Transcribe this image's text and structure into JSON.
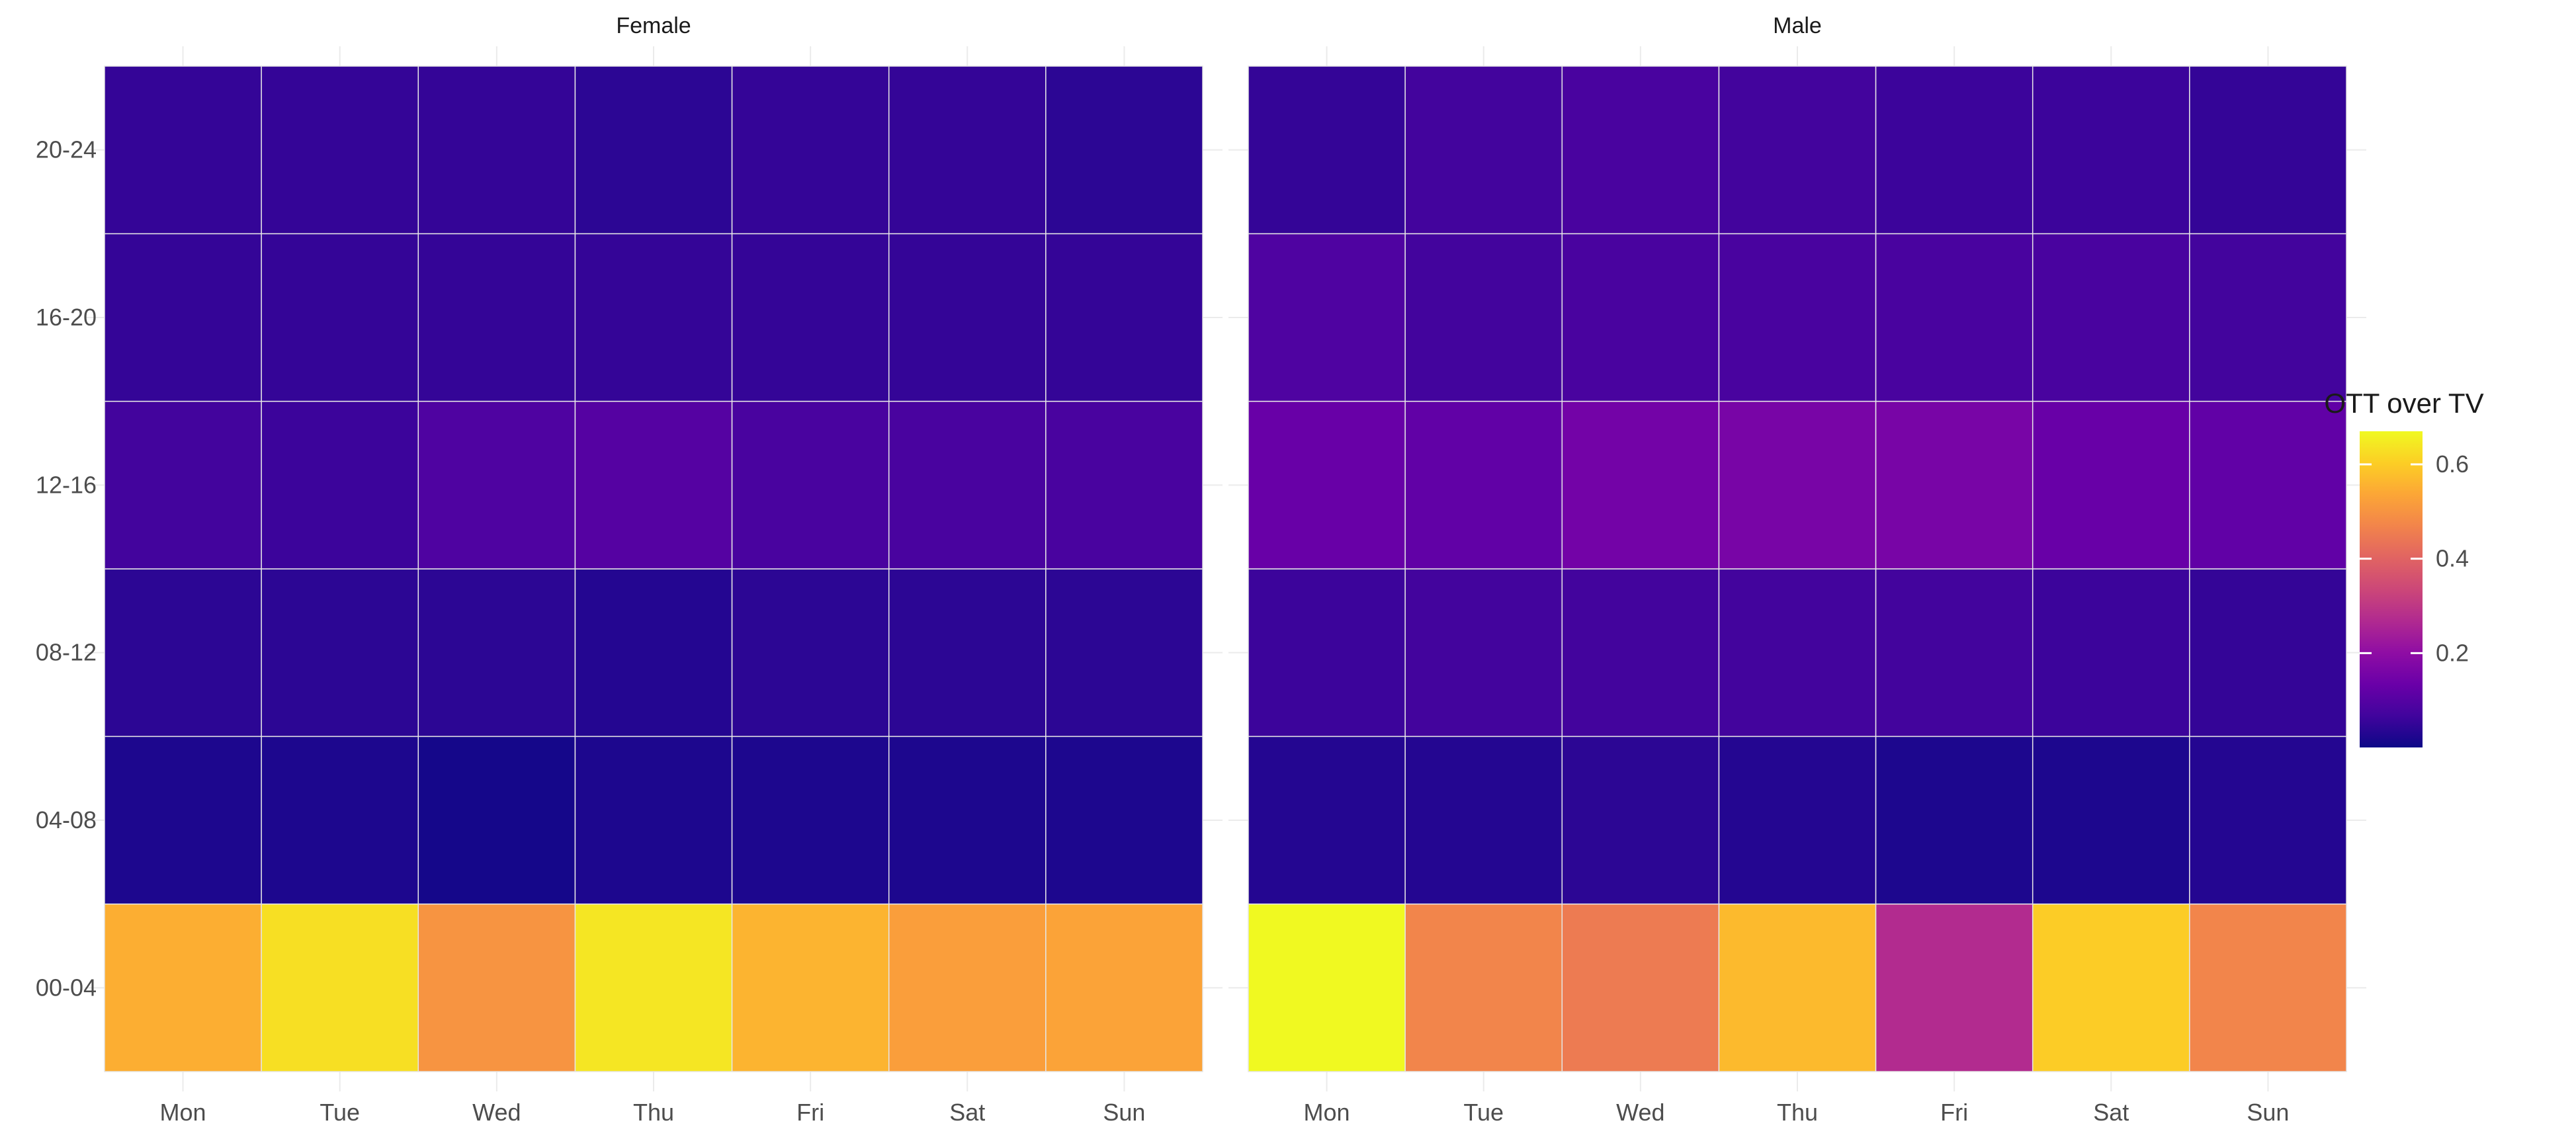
{
  "chart_data": {
    "type": "heatmap",
    "title": "",
    "xlabel": "",
    "ylabel": "",
    "panels": [
      {
        "label": "Female",
        "x": [
          "Mon",
          "Tue",
          "Wed",
          "Thu",
          "Fri",
          "Sat",
          "Sun"
        ],
        "y": [
          "00-04",
          "04-08",
          "08-12",
          "12-16",
          "16-20",
          "20-24"
        ],
        "values": [
          [
            0.55,
            0.63,
            0.5,
            0.64,
            0.56,
            0.52,
            0.53
          ],
          [
            0.02,
            0.02,
            0.01,
            0.02,
            0.02,
            0.02,
            0.02
          ],
          [
            0.04,
            0.04,
            0.04,
            0.03,
            0.04,
            0.04,
            0.04
          ],
          [
            0.07,
            0.06,
            0.09,
            0.1,
            0.08,
            0.08,
            0.08
          ],
          [
            0.05,
            0.05,
            0.05,
            0.05,
            0.05,
            0.05,
            0.05
          ],
          [
            0.05,
            0.05,
            0.05,
            0.04,
            0.05,
            0.05,
            0.04
          ]
        ]
      },
      {
        "label": "Male",
        "x": [
          "Mon",
          "Tue",
          "Wed",
          "Thu",
          "Fri",
          "Sat",
          "Sun"
        ],
        "y": [
          "00-04",
          "04-08",
          "08-12",
          "12-16",
          "16-20",
          "20-24"
        ],
        "values": [
          [
            0.68,
            0.47,
            0.45,
            0.57,
            0.27,
            0.6,
            0.47
          ],
          [
            0.03,
            0.03,
            0.04,
            0.03,
            0.02,
            0.02,
            0.03
          ],
          [
            0.06,
            0.07,
            0.07,
            0.07,
            0.07,
            0.06,
            0.05
          ],
          [
            0.13,
            0.12,
            0.15,
            0.16,
            0.16,
            0.13,
            0.12
          ],
          [
            0.09,
            0.07,
            0.08,
            0.08,
            0.08,
            0.08,
            0.07
          ],
          [
            0.05,
            0.07,
            0.08,
            0.07,
            0.06,
            0.06,
            0.05
          ]
        ]
      }
    ],
    "legend": {
      "title": "OTT over TV",
      "position": "right",
      "ticks": [
        0.2,
        0.4,
        0.6
      ],
      "range": [
        0.0,
        0.67
      ]
    },
    "colormap": "plasma",
    "grid": true
  }
}
